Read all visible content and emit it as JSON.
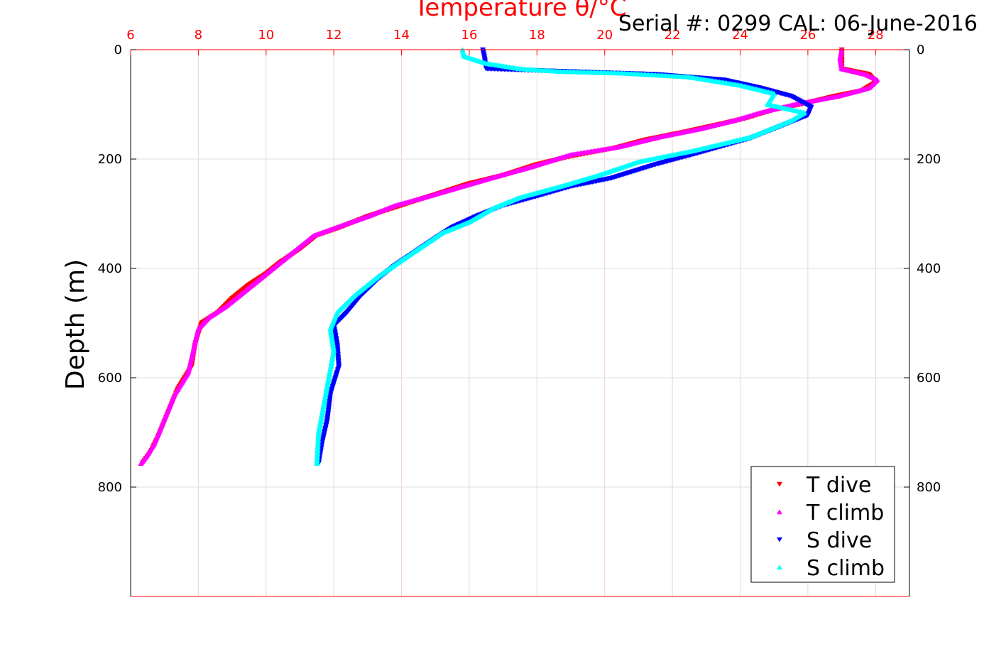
{
  "chart_data": {
    "type": "scatter",
    "title": "Temperature θ/°C",
    "annotation": "Serial #: 0299 CAL: 06-June-2016",
    "xlabel": "Temperature θ/°C",
    "ylabel": "Depth (m)",
    "xlim": [
      6,
      29
    ],
    "ylim": [
      1000,
      0
    ],
    "x_ticks": [
      6,
      8,
      10,
      12,
      14,
      16,
      18,
      20,
      22,
      24,
      26,
      28
    ],
    "y_ticks": [
      0,
      200,
      400,
      600,
      800
    ],
    "y_inverted": true,
    "x_axis_position": "top",
    "grid": true,
    "legend_position": "bottom-right",
    "series": [
      {
        "name": "T dive",
        "marker": "triangle-down",
        "color": "#ff0000",
        "points": [
          [
            27.0,
            0
          ],
          [
            27.0,
            15
          ],
          [
            27.0,
            35
          ],
          [
            27.8,
            45
          ],
          [
            28.0,
            60
          ],
          [
            27.6,
            75
          ],
          [
            26.8,
            85
          ],
          [
            25.8,
            100
          ],
          [
            25.0,
            110
          ],
          [
            24.2,
            125
          ],
          [
            23.5,
            135
          ],
          [
            22.4,
            150
          ],
          [
            21.2,
            165
          ],
          [
            20.3,
            180
          ],
          [
            19.0,
            195
          ],
          [
            18.0,
            210
          ],
          [
            17.0,
            230
          ],
          [
            16.0,
            245
          ],
          [
            15.0,
            265
          ],
          [
            14.0,
            285
          ],
          [
            13.0,
            305
          ],
          [
            12.2,
            325
          ],
          [
            11.5,
            340
          ],
          [
            11.0,
            365
          ],
          [
            10.4,
            390
          ],
          [
            10.0,
            410
          ],
          [
            9.5,
            430
          ],
          [
            9.0,
            455
          ],
          [
            8.6,
            480
          ],
          [
            8.1,
            500
          ],
          [
            7.9,
            540
          ],
          [
            7.8,
            580
          ],
          [
            7.4,
            620
          ],
          [
            7.2,
            650
          ],
          [
            7.0,
            680
          ],
          [
            6.8,
            710
          ],
          [
            6.6,
            735
          ],
          [
            6.35,
            757
          ]
        ]
      },
      {
        "name": "T climb",
        "marker": "triangle-up",
        "color": "#ff00ff",
        "points": [
          [
            27.0,
            0
          ],
          [
            26.95,
            15
          ],
          [
            27.0,
            35
          ],
          [
            27.7,
            45
          ],
          [
            28.05,
            55
          ],
          [
            27.8,
            70
          ],
          [
            26.9,
            85
          ],
          [
            25.6,
            100
          ],
          [
            24.6,
            115
          ],
          [
            23.8,
            130
          ],
          [
            22.8,
            145
          ],
          [
            21.6,
            160
          ],
          [
            20.4,
            178
          ],
          [
            19.0,
            192
          ],
          [
            17.8,
            215
          ],
          [
            16.8,
            232
          ],
          [
            15.8,
            250
          ],
          [
            14.8,
            268
          ],
          [
            13.8,
            285
          ],
          [
            13.0,
            305
          ],
          [
            12.3,
            320
          ],
          [
            11.4,
            340
          ],
          [
            10.9,
            365
          ],
          [
            10.3,
            395
          ],
          [
            9.8,
            420
          ],
          [
            9.3,
            445
          ],
          [
            8.8,
            470
          ],
          [
            8.3,
            490
          ],
          [
            8.0,
            510
          ],
          [
            7.85,
            550
          ],
          [
            7.7,
            590
          ],
          [
            7.3,
            630
          ],
          [
            7.1,
            660
          ],
          [
            6.9,
            690
          ],
          [
            6.7,
            720
          ],
          [
            6.45,
            745
          ],
          [
            6.3,
            757
          ]
        ]
      },
      {
        "name": "S dive",
        "marker": "triangle-down",
        "color": "#0000ff",
        "points": [
          [
            16.4,
            0
          ],
          [
            16.45,
            15
          ],
          [
            16.5,
            35
          ],
          [
            18.0,
            38
          ],
          [
            20.0,
            42
          ],
          [
            21.5,
            45
          ],
          [
            23.5,
            55
          ],
          [
            24.6,
            70
          ],
          [
            25.5,
            85
          ],
          [
            26.1,
            105
          ],
          [
            26.0,
            120
          ],
          [
            25.2,
            140
          ],
          [
            24.3,
            162
          ],
          [
            22.7,
            190
          ],
          [
            21.5,
            210
          ],
          [
            20.2,
            235
          ],
          [
            19.0,
            250
          ],
          [
            18.0,
            268
          ],
          [
            17.0,
            285
          ],
          [
            16.2,
            305
          ],
          [
            15.5,
            325
          ],
          [
            15.0,
            345
          ],
          [
            14.4,
            370
          ],
          [
            13.8,
            395
          ],
          [
            13.3,
            420
          ],
          [
            12.8,
            450
          ],
          [
            12.4,
            480
          ],
          [
            12.0,
            505
          ],
          [
            12.1,
            540
          ],
          [
            12.15,
            580
          ],
          [
            11.9,
            630
          ],
          [
            11.8,
            680
          ],
          [
            11.65,
            720
          ],
          [
            11.55,
            757
          ]
        ]
      },
      {
        "name": "S climb",
        "marker": "triangle-up",
        "color": "#00ffff",
        "points": [
          [
            15.8,
            0
          ],
          [
            15.85,
            12
          ],
          [
            16.5,
            25
          ],
          [
            17.5,
            35
          ],
          [
            18.7,
            40
          ],
          [
            20.5,
            43
          ],
          [
            22.5,
            50
          ],
          [
            24.0,
            65
          ],
          [
            25.0,
            80
          ],
          [
            24.8,
            100
          ],
          [
            25.9,
            115
          ],
          [
            25.5,
            130
          ],
          [
            24.3,
            160
          ],
          [
            22.6,
            185
          ],
          [
            21.0,
            205
          ],
          [
            19.8,
            230
          ],
          [
            18.7,
            250
          ],
          [
            17.5,
            270
          ],
          [
            16.7,
            290
          ],
          [
            16.0,
            315
          ],
          [
            15.2,
            335
          ],
          [
            14.6,
            360
          ],
          [
            14.0,
            385
          ],
          [
            13.3,
            415
          ],
          [
            12.6,
            450
          ],
          [
            12.1,
            480
          ],
          [
            11.9,
            510
          ],
          [
            12.0,
            550
          ],
          [
            11.85,
            600
          ],
          [
            11.7,
            650
          ],
          [
            11.55,
            700
          ],
          [
            11.5,
            757
          ]
        ]
      }
    ]
  }
}
